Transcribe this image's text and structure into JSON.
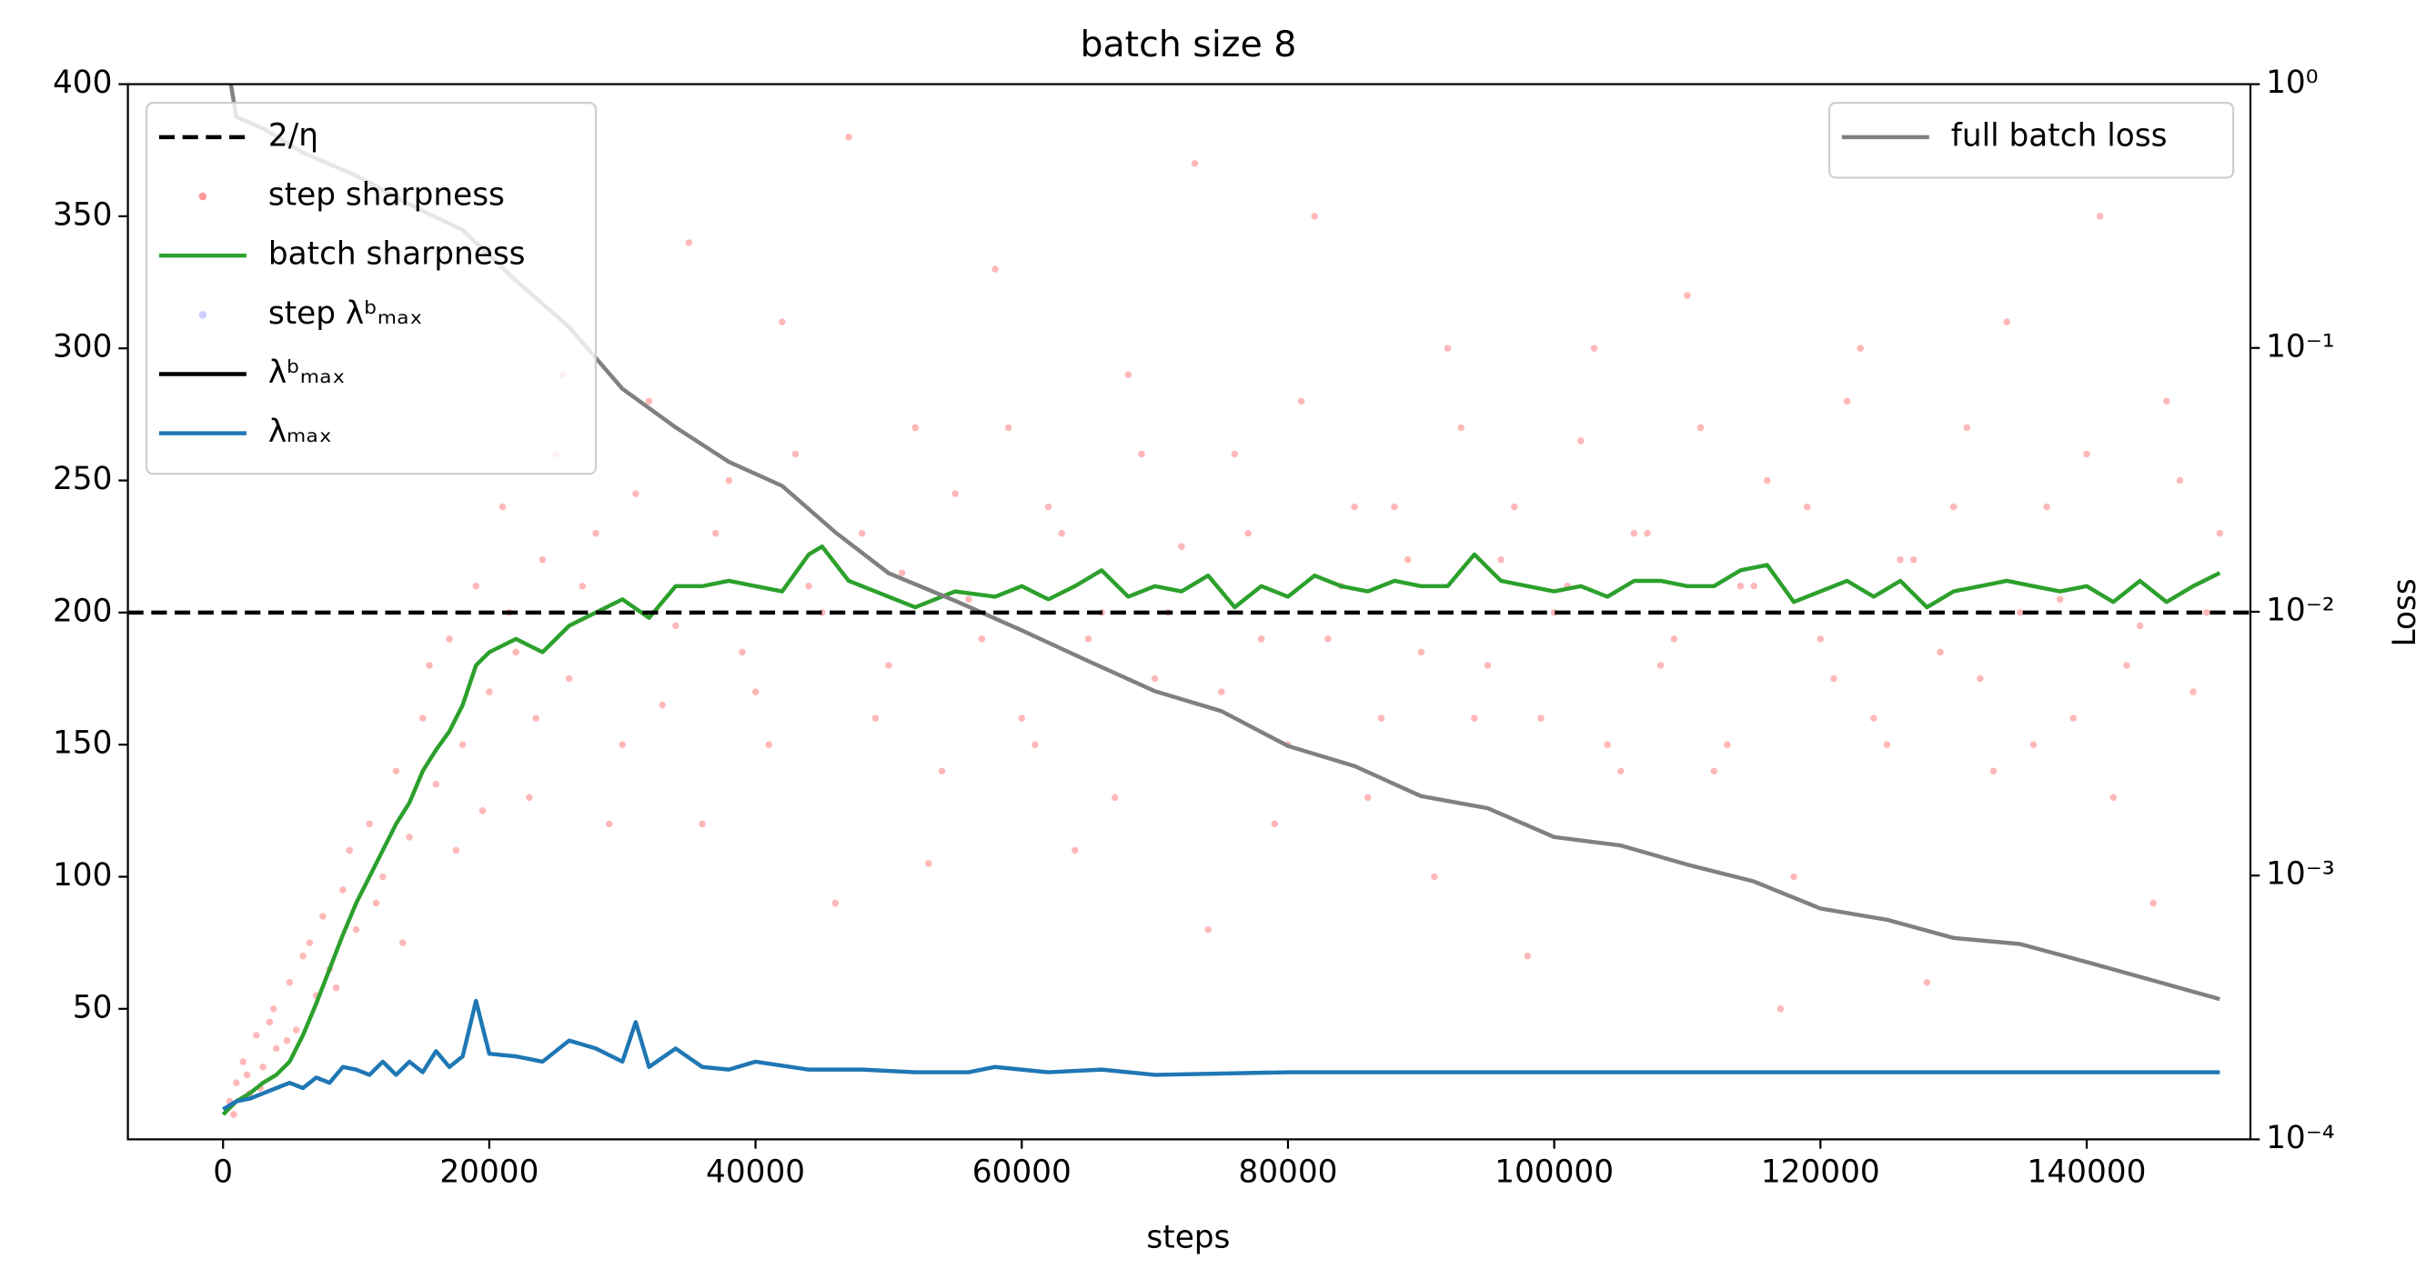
{
  "chart_data": {
    "type": "combo",
    "title": "batch size 8",
    "xlabel": "steps",
    "y2label": "Loss",
    "xlim": [
      -7150,
      152300
    ],
    "ylim": [
      0.6,
      400
    ],
    "y2lim": [
      0.0001,
      1
    ],
    "y2scale": "log",
    "xticks": [
      0,
      20000,
      40000,
      60000,
      80000,
      100000,
      120000,
      140000
    ],
    "yticks": [
      50,
      100,
      150,
      200,
      250,
      300,
      350,
      400
    ],
    "y2ticks": [
      {
        "value": 0.0001,
        "label": "10⁻⁴"
      },
      {
        "value": 0.001,
        "label": "10⁻³"
      },
      {
        "value": 0.01,
        "label": "10⁻²"
      },
      {
        "value": 0.1,
        "label": "10⁻¹"
      },
      {
        "value": 1,
        "label": "10⁰"
      }
    ],
    "legend": "upper left",
    "legend2": "upper right",
    "hline": {
      "name": "2/η",
      "value": 200,
      "color": "#000000",
      "style": "dashed"
    },
    "series": [
      {
        "name": "step sharpness",
        "type": "scatter",
        "color": "#ff0000",
        "x": [
          500,
          1000,
          1500,
          2000,
          2500,
          3000,
          3500,
          4000,
          5000,
          5500,
          6000,
          7000,
          7500,
          8000,
          9000,
          10000,
          11000,
          12000,
          13000,
          14000,
          15000,
          16000,
          17000,
          18000,
          19000,
          20000,
          21000,
          22000,
          23000,
          24000,
          25000,
          26000,
          28000,
          30000,
          32000,
          34000,
          36000,
          38000,
          40000,
          42000,
          44000,
          46000,
          48000,
          50000,
          52000,
          54000,
          56000,
          58000,
          60000,
          62000,
          64000,
          66000,
          68000,
          70000,
          72000,
          74000,
          76000,
          78000,
          80000,
          82000,
          84000,
          86000,
          88000,
          90000,
          92000,
          94000,
          96000,
          98000,
          100000,
          102000,
          104000,
          106000,
          108000,
          110000,
          112000,
          114000,
          116000,
          118000,
          120000,
          122000,
          124000,
          126000,
          128000,
          130000,
          132000,
          134000,
          136000,
          138000,
          140000,
          142000,
          144000,
          146000,
          148000,
          150000,
          800,
          1800,
          2800,
          3800,
          4800,
          6500,
          8500,
          9500,
          11500,
          13500,
          15500,
          17500,
          19500,
          21500,
          23500,
          25500,
          27000,
          29000,
          31000,
          33000,
          35000,
          37000,
          39000,
          41000,
          43000,
          45000,
          47000,
          49000,
          51000,
          53000,
          55000,
          57000,
          59000,
          61000,
          63000,
          65000,
          67000,
          69000,
          71000,
          73000,
          75000,
          77000,
          79000,
          81000,
          83000,
          85000,
          87000,
          89000,
          91000,
          93000,
          95000,
          97000,
          99000,
          101000,
          103000,
          105000,
          107000,
          109000,
          111000,
          113000,
          115000,
          117000,
          119000,
          121000,
          123000,
          125000,
          127000,
          129000,
          131000,
          133000,
          135000,
          137000,
          139000,
          141000,
          143000,
          145000,
          147000,
          149000
        ],
        "values": [
          15,
          22,
          30,
          18,
          40,
          28,
          45,
          35,
          60,
          42,
          70,
          55,
          85,
          65,
          95,
          80,
          120,
          100,
          140,
          115,
          160,
          135,
          190,
          150,
          210,
          170,
          240,
          185,
          130,
          220,
          260,
          175,
          230,
          150,
          280,
          195,
          120,
          250,
          170,
          310,
          210,
          90,
          230,
          180,
          270,
          140,
          205,
          330,
          160,
          240,
          110,
          200,
          290,
          175,
          225,
          80,
          260,
          190,
          150,
          350,
          210,
          130,
          240,
          185,
          300,
          160,
          220,
          70,
          200,
          265,
          150,
          230,
          180,
          320,
          140,
          210,
          250,
          100,
          190,
          280,
          160,
          220,
          60,
          240,
          175,
          310,
          150,
          205,
          260,
          130,
          195,
          280,
          170,
          230,
          10,
          25,
          20,
          50,
          38,
          75,
          58,
          110,
          90,
          75,
          180,
          110,
          125,
          200,
          160,
          290,
          210,
          120,
          245,
          165,
          340,
          230,
          185,
          150,
          260,
          200,
          380,
          160,
          215,
          105,
          245,
          190,
          270,
          150,
          230,
          190,
          130,
          260,
          200,
          370,
          170,
          230,
          120,
          280,
          190,
          240,
          160,
          220,
          100,
          270,
          180,
          240,
          160,
          210,
          300,
          140,
          230,
          190,
          270,
          150,
          210,
          50,
          240,
          175,
          300,
          150,
          220,
          185,
          270,
          140,
          200,
          240,
          160,
          350,
          180,
          90,
          250,
          200
        ]
      },
      {
        "name": "batch sharpness",
        "type": "line",
        "color": "#2ca02c",
        "x": [
          0,
          1000,
          2000,
          3000,
          4000,
          5000,
          6000,
          7000,
          8000,
          9000,
          10000,
          11000,
          12000,
          13000,
          14000,
          15000,
          16000,
          17000,
          18000,
          19000,
          20000,
          22000,
          24000,
          26000,
          28000,
          30000,
          32000,
          34000,
          36000,
          38000,
          40000,
          42000,
          44000,
          45000,
          47000,
          50000,
          52000,
          55000,
          58000,
          60000,
          62000,
          64000,
          66000,
          68000,
          70000,
          72000,
          74000,
          76000,
          78000,
          80000,
          82000,
          84000,
          86000,
          88000,
          90000,
          92000,
          94000,
          96000,
          98000,
          100000,
          102000,
          104000,
          106000,
          108000,
          110000,
          112000,
          114000,
          116000,
          118000,
          120000,
          122000,
          124000,
          126000,
          128000,
          130000,
          132000,
          134000,
          136000,
          138000,
          140000,
          142000,
          144000,
          146000,
          148000,
          150000
        ],
        "values": [
          10,
          15,
          18,
          22,
          25,
          30,
          40,
          52,
          65,
          78,
          90,
          100,
          110,
          120,
          128,
          140,
          148,
          155,
          165,
          180,
          185,
          190,
          185,
          195,
          200,
          205,
          198,
          210,
          210,
          212,
          210,
          208,
          222,
          225,
          212,
          206,
          202,
          208,
          206,
          210,
          205,
          210,
          216,
          206,
          210,
          208,
          214,
          202,
          210,
          206,
          214,
          210,
          208,
          212,
          210,
          210,
          222,
          212,
          210,
          208,
          210,
          206,
          212,
          212,
          210,
          210,
          216,
          218,
          204,
          208,
          212,
          206,
          212,
          202,
          208,
          210,
          212,
          210,
          208,
          210,
          204,
          212,
          204,
          210,
          215
        ]
      },
      {
        "name": "step λᵇₘₐₓ",
        "type": "scatter",
        "color": "#7f7fff",
        "x": [],
        "values": []
      },
      {
        "name": "λᵇₘₐₓ",
        "type": "line",
        "color": "#000000",
        "x": [],
        "values": []
      },
      {
        "name": "λₘₐₓ",
        "type": "line",
        "color": "#1f77b4",
        "x": [
          0,
          1000,
          2000,
          3000,
          4000,
          5000,
          6000,
          7000,
          8000,
          9000,
          10000,
          11000,
          12000,
          13000,
          14000,
          15000,
          16000,
          17000,
          18000,
          19000,
          20000,
          22000,
          24000,
          26000,
          28000,
          30000,
          31000,
          32000,
          34000,
          36000,
          38000,
          40000,
          44000,
          48000,
          52000,
          56000,
          58000,
          62000,
          66000,
          70000,
          80000,
          90000,
          100000,
          110000,
          120000,
          130000,
          140000,
          150000
        ],
        "values": [
          12,
          15,
          16,
          18,
          20,
          22,
          20,
          24,
          22,
          28,
          27,
          25,
          30,
          25,
          30,
          26,
          34,
          28,
          32,
          53,
          33,
          32,
          30,
          38,
          35,
          30,
          45,
          28,
          35,
          28,
          27,
          30,
          27,
          27,
          26,
          26,
          28,
          26,
          27,
          25,
          26,
          26,
          26,
          26,
          26,
          26,
          26,
          26
        ]
      },
      {
        "name": "full batch loss",
        "type": "line",
        "color": "#808080",
        "axis": "y2",
        "x": [
          0,
          1000,
          3000,
          6000,
          10000,
          14000,
          18000,
          22000,
          26000,
          30000,
          34000,
          38000,
          42000,
          46000,
          50000,
          55000,
          60000,
          65000,
          70000,
          75000,
          80000,
          85000,
          90000,
          95000,
          100000,
          105000,
          110000,
          115000,
          120000,
          125000,
          130000,
          135000,
          140000,
          145000,
          150000
        ],
        "values": [
          1.5,
          0.75,
          0.68,
          0.55,
          0.45,
          0.35,
          0.28,
          0.18,
          0.12,
          0.07,
          0.05,
          0.037,
          0.03,
          0.02,
          0.014,
          0.011,
          0.0085,
          0.0065,
          0.005,
          0.0042,
          0.0031,
          0.0026,
          0.002,
          0.0018,
          0.0014,
          0.0013,
          0.0011,
          0.00095,
          0.00075,
          0.00068,
          0.00058,
          0.00055,
          0.00047,
          0.0004,
          0.00034
        ]
      }
    ]
  }
}
